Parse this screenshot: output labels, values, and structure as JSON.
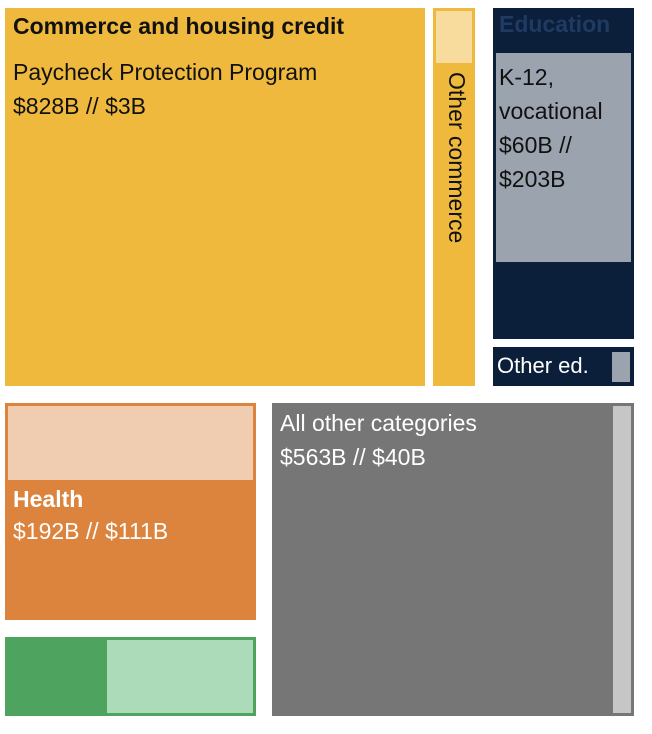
{
  "chart_data": {
    "type": "treemap",
    "value_format": "first // second",
    "groups": [
      {
        "name": "Commerce and housing credit",
        "color": "#efb93d",
        "children": [
          {
            "name": "Paycheck Protection Program",
            "value_1_billions": 828,
            "value_2_billions": 3,
            "display": "$828B // $3B",
            "color": "#efb93d"
          },
          {
            "name": "Other commerce",
            "color": "#f7dc9e"
          }
        ]
      },
      {
        "name": "Education",
        "color": "#0b1e3a",
        "children": [
          {
            "name": "K-12, vocational",
            "name_lines": [
              "K-12,",
              "vocational"
            ],
            "value_1_billions": 60,
            "value_2_billions": 203,
            "display_lines": [
              "$60B //",
              "$203B"
            ],
            "color": "#9ba3ae"
          },
          {
            "name": "Other ed.",
            "color": "#9ba3ae"
          }
        ]
      },
      {
        "name": "Health",
        "value_1_billions": 192,
        "value_2_billions": 111,
        "display": "$192B // $111B",
        "color": "#dc843e",
        "secondary_color": "#f0cdb1"
      },
      {
        "name": "All other categories",
        "value_1_billions": 563,
        "value_2_billions": 40,
        "display": "$563B // $40B",
        "color": "#767676",
        "secondary_color": "#c6c6c6"
      },
      {
        "name": "",
        "color": "#4ea45e",
        "secondary_color": "#acdbba"
      }
    ]
  }
}
